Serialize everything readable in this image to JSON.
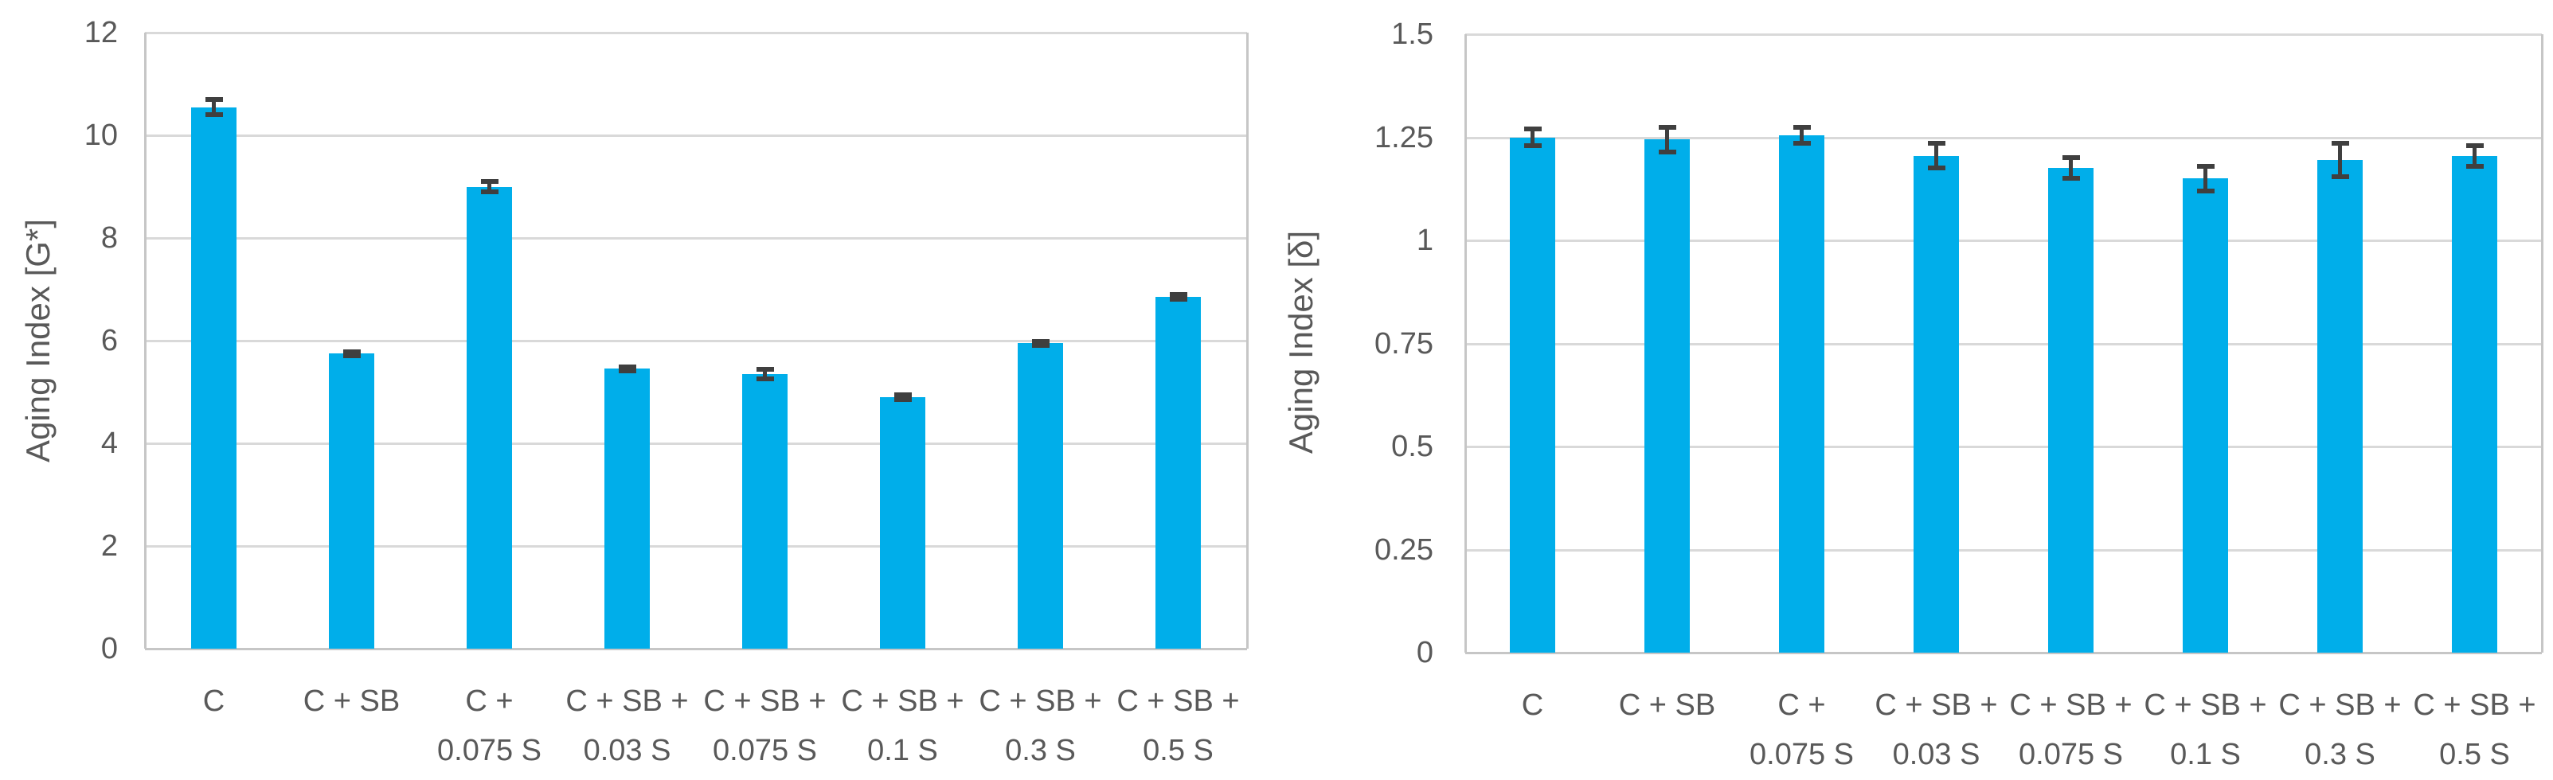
{
  "figure": {
    "background": "#ffffff",
    "text_color": "#595959",
    "bar_color": "#00AEEA",
    "error_bar_color": "#3F3F3F",
    "gridline_color": "#D9D9D9",
    "axis_line_color": "#C6C6C6"
  },
  "chart_data": [
    {
      "type": "bar",
      "title": "",
      "xlabel": "",
      "ylabel": "Aging Index [G*]",
      "ylim": [
        0,
        12
      ],
      "ytick_values": [
        0,
        2,
        4,
        6,
        8,
        10,
        12
      ],
      "ytick_labels": [
        "0",
        "2",
        "4",
        "6",
        "8",
        "10",
        "12"
      ],
      "grid": true,
      "legend": "none",
      "categories": [
        "C",
        "C + SB",
        "C + 0.075 S",
        "C + SB + 0.03 S",
        "C + SB + 0.075 S",
        "C + SB + 0.1 S",
        "C + SB + 0.3 S",
        "C + SB + 0.5 S"
      ],
      "category_label_lines": [
        [
          "C"
        ],
        [
          "C + SB"
        ],
        [
          "C +",
          "0.075 S"
        ],
        [
          "C + SB +",
          "0.03 S"
        ],
        [
          "C + SB +",
          "0.075 S"
        ],
        [
          "C + SB +",
          "0.1 S"
        ],
        [
          "C + SB +",
          "0.3 S"
        ],
        [
          "C + SB +",
          "0.5 S"
        ]
      ],
      "values": [
        10.55,
        5.75,
        9.0,
        5.45,
        5.35,
        4.9,
        5.95,
        6.85
      ],
      "error_bars": [
        0.15,
        0.04,
        0.1,
        0.04,
        0.09,
        0.04,
        0.04,
        0.05
      ]
    },
    {
      "type": "bar",
      "title": "",
      "xlabel": "",
      "ylabel": "Aging Index [δ]",
      "ylim": [
        0,
        1.5
      ],
      "ytick_values": [
        0,
        0.25,
        0.5,
        0.75,
        1,
        1.25,
        1.5
      ],
      "ytick_labels": [
        "0",
        "0.25",
        "0.5",
        "0.75",
        "1",
        "1.25",
        "1.5"
      ],
      "grid": true,
      "legend": "none",
      "categories": [
        "C",
        "C + SB",
        "C + 0.075 S",
        "C + SB + 0.03 S",
        "C + SB + 0.075 S",
        "C + SB + 0.1 S",
        "C + SB + 0.3 S",
        "C + SB + 0.5 S"
      ],
      "category_label_lines": [
        [
          "C"
        ],
        [
          "C + SB"
        ],
        [
          "C +",
          "0.075 S"
        ],
        [
          "C + SB +",
          "0.03 S"
        ],
        [
          "C + SB +",
          "0.075 S"
        ],
        [
          "C + SB +",
          "0.1 S"
        ],
        [
          "C + SB +",
          "0.3 S"
        ],
        [
          "C + SB +",
          "0.5 S"
        ]
      ],
      "values": [
        1.25,
        1.245,
        1.255,
        1.205,
        1.175,
        1.15,
        1.195,
        1.205
      ],
      "error_bars": [
        0.02,
        0.03,
        0.02,
        0.03,
        0.025,
        0.03,
        0.04,
        0.025
      ]
    }
  ]
}
